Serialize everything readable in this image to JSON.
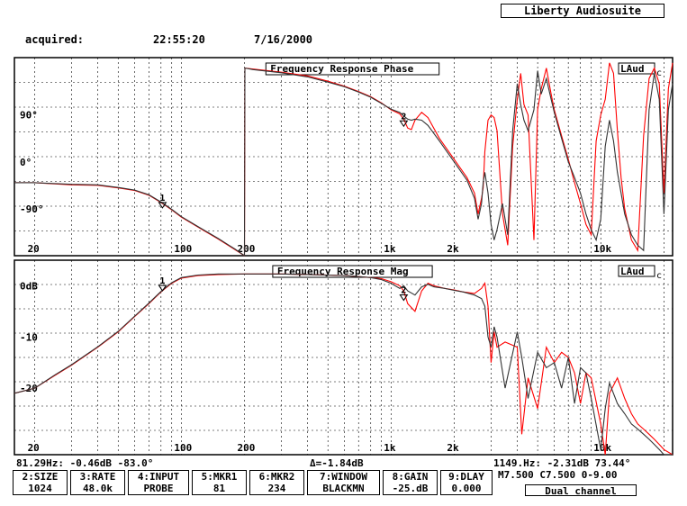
{
  "app_title": "Liberty Audiosuite",
  "acquisition": {
    "label": "acquired:",
    "time": "22:55:20",
    "date": "7/16/2000"
  },
  "colors": {
    "series1": "#ff0000",
    "series2": "#333333",
    "grid": "#000000",
    "frame": "#000000"
  },
  "chart_data": [
    {
      "type": "line",
      "title": "Frequency Response Phase",
      "badge": "LAud",
      "x_scale": "log",
      "xlim": [
        16,
        22000
      ],
      "x_ticks": [
        20,
        100,
        200,
        "1k",
        "2k",
        "10k"
      ],
      "x_tick_values": [
        20,
        100,
        200,
        1000,
        2000,
        10000
      ],
      "ylim": [
        -180,
        200
      ],
      "y_ticks": [
        "90°",
        "0°",
        "-90°"
      ],
      "y_tick_values": [
        90,
        0,
        -90
      ],
      "markers": [
        {
          "label": "1",
          "x": 81.29,
          "y": -83.0
        },
        {
          "label": "2",
          "x": 1149,
          "y": 73.44
        }
      ],
      "series": [
        {
          "x": [
            16,
            20,
            30,
            40,
            50,
            60,
            70,
            80,
            90,
            100,
            120,
            150,
            180,
            200,
            201,
            220,
            300,
            400,
            500,
            600,
            700,
            800,
            900,
            1000,
            1100,
            1150,
            1200,
            1250,
            1300,
            1400,
            1500,
            1700,
            2000,
            2300,
            2500,
            2600,
            2700,
            2750,
            2800,
            2900,
            3000,
            3100,
            3200,
            3400,
            3600,
            3800,
            4000,
            4150,
            4300,
            4500,
            4800,
            5000,
            5200,
            5500,
            5800,
            6000,
            6500,
            7000,
            7500,
            8000,
            8500,
            9000,
            9500,
            10000,
            10500,
            11000,
            11500,
            12000,
            12500,
            13000,
            14000,
            15000,
            16000,
            17000,
            18000,
            19000,
            20000,
            21000,
            22000
          ],
          "y": [
            -40,
            -40,
            -44,
            -45,
            -50,
            -55,
            -64,
            -78,
            -92,
            -106,
            -125,
            -148,
            -168,
            -180,
            180,
            178,
            172,
            165,
            155,
            145,
            135,
            125,
            113,
            100,
            92,
            82,
            65,
            62,
            80,
            95,
            85,
            45,
            5,
            -30,
            -60,
            -100,
            -70,
            -50,
            20,
            80,
            90,
            85,
            60,
            -100,
            -160,
            30,
            120,
            170,
            110,
            90,
            -150,
            100,
            140,
            180,
            130,
            100,
            50,
            5,
            -40,
            -80,
            -120,
            -140,
            40,
            90,
            120,
            190,
            170,
            60,
            -30,
            -90,
            -150,
            -170,
            50,
            160,
            180,
            150,
            -60,
            140,
            190
          ]
        },
        {
          "x": [
            16,
            20,
            30,
            40,
            50,
            60,
            70,
            80,
            90,
            100,
            120,
            150,
            180,
            200,
            201,
            220,
            300,
            400,
            500,
            600,
            700,
            800,
            900,
            1000,
            1100,
            1150,
            1200,
            1250,
            1300,
            1400,
            1500,
            1700,
            2000,
            2300,
            2500,
            2600,
            2700,
            2750,
            2800,
            2900,
            3000,
            3100,
            3200,
            3400,
            3600,
            3800,
            4000,
            4150,
            4300,
            4500,
            4800,
            5000,
            5200,
            5500,
            5800,
            6000,
            6500,
            7000,
            7500,
            8000,
            8500,
            9000,
            9500,
            10000,
            10500,
            11000,
            11500,
            12000,
            12500,
            13000,
            14000,
            15000,
            16000,
            17000,
            18000,
            19000,
            20000,
            21000,
            22000
          ],
          "y": [
            -40,
            -40,
            -43,
            -44,
            -49,
            -54,
            -63,
            -77,
            -91,
            -105,
            -124,
            -147,
            -167,
            -180,
            180,
            177,
            171,
            163,
            153,
            144,
            134,
            124,
            112,
            101,
            95,
            88,
            82,
            80,
            82,
            80,
            70,
            40,
            0,
            -35,
            -70,
            -110,
            -80,
            -40,
            -20,
            -60,
            -120,
            -150,
            -130,
            -80,
            -140,
            60,
            150,
            110,
            80,
            60,
            100,
            175,
            130,
            160,
            120,
            95,
            45,
            0,
            -30,
            -60,
            -100,
            -130,
            -150,
            -110,
            30,
            80,
            40,
            -20,
            -60,
            -100,
            -140,
            -160,
            -170,
            100,
            170,
            120,
            -100,
            100,
            150
          ]
        }
      ]
    },
    {
      "type": "line",
      "title": "Frequency Response Mag",
      "badge": "LAud",
      "x_scale": "log",
      "xlim": [
        16,
        22000
      ],
      "x_ticks": [
        20,
        100,
        200,
        "1k",
        "2k",
        "10k"
      ],
      "x_tick_values": [
        20,
        100,
        200,
        1000,
        2000,
        10000
      ],
      "ylim": [
        -33,
        5
      ],
      "y_ticks": [
        "0dB",
        "-10",
        "-20"
      ],
      "y_tick_values": [
        0,
        -10,
        -20
      ],
      "markers": [
        {
          "label": "1",
          "x": 81.29,
          "y": -0.46
        },
        {
          "label": "2",
          "x": 1149,
          "y": -2.31
        }
      ],
      "series": [
        {
          "x": [
            16,
            20,
            25,
            30,
            40,
            50,
            60,
            70,
            80,
            90,
            100,
            120,
            150,
            200,
            300,
            400,
            500,
            600,
            700,
            800,
            900,
            1000,
            1100,
            1150,
            1200,
            1300,
            1400,
            1500,
            1600,
            1800,
            2000,
            2200,
            2500,
            2700,
            2800,
            2900,
            3000,
            3100,
            3200,
            3500,
            4000,
            4200,
            4500,
            5000,
            5500,
            6000,
            6500,
            7000,
            7500,
            8000,
            8500,
            9000,
            10000,
            10500,
            11000,
            12000,
            13000,
            14000,
            15000,
            16000,
            17000,
            18000,
            19000,
            20000,
            22000
          ],
          "y": [
            -21,
            -20,
            -17.5,
            -15.5,
            -12,
            -9,
            -6,
            -3.5,
            -1.2,
            0.5,
            1.5,
            2,
            2.2,
            2.3,
            2.3,
            2.2,
            2.1,
            2,
            1.8,
            1.6,
            1.4,
            0.8,
            0,
            -1,
            -3.5,
            -5,
            -1,
            0.5,
            0,
            -0.5,
            -0.8,
            -1.2,
            -1.5,
            -0.5,
            0.5,
            -4,
            -15,
            -9,
            -12,
            -11,
            -12,
            -29,
            -18,
            -24,
            -12,
            -15,
            -13,
            -14,
            -17,
            -23,
            -17,
            -18,
            -27,
            -33,
            -21,
            -18,
            -22,
            -25,
            -27,
            -28,
            -29,
            -30,
            -31,
            -32,
            -33
          ]
        },
        {
          "x": [
            16,
            20,
            25,
            30,
            40,
            50,
            60,
            70,
            80,
            90,
            100,
            120,
            150,
            200,
            300,
            400,
            500,
            600,
            700,
            800,
            900,
            1000,
            1100,
            1150,
            1200,
            1300,
            1400,
            1500,
            1600,
            1800,
            2000,
            2200,
            2500,
            2700,
            2800,
            2900,
            3000,
            3100,
            3200,
            3500,
            4000,
            4200,
            4500,
            5000,
            5500,
            6000,
            6500,
            7000,
            7500,
            8000,
            8500,
            9000,
            10000,
            10500,
            11000,
            12000,
            13000,
            14000,
            15000,
            16000,
            17000,
            18000,
            19000,
            20000,
            22000
          ],
          "y": [
            -21,
            -20,
            -17.4,
            -15.4,
            -11.9,
            -8.9,
            -5.9,
            -3.4,
            -1.1,
            0.6,
            1.6,
            2.1,
            2.3,
            2.3,
            2.3,
            2.2,
            2.1,
            2,
            1.8,
            1.6,
            1.2,
            0.5,
            -0.5,
            0,
            -1,
            -1.8,
            -0.2,
            0.3,
            -0.2,
            -0.5,
            -0.9,
            -1.2,
            -1.8,
            -2.5,
            -4,
            -10,
            -12,
            -8,
            -10,
            -20,
            -9,
            -14,
            -22,
            -13,
            -16,
            -15,
            -20,
            -14,
            -23,
            -16,
            -17,
            -22,
            -32,
            -24,
            -19,
            -23,
            -25,
            -27,
            -28,
            -29,
            -30,
            -31,
            -32,
            -33,
            -33
          ]
        }
      ]
    }
  ],
  "readout": {
    "marker1": "81.29Hz: -0.46dB  -83.0°",
    "delta": "Δ=-1.84dB",
    "marker2": "1149.Hz: -2.31dB 73.44°"
  },
  "function_keys": [
    {
      "key": "2:SIZE",
      "value": "1024"
    },
    {
      "key": "3:RATE",
      "value": "48.0k"
    },
    {
      "key": "4:INPUT",
      "value": "PROBE"
    },
    {
      "key": "5:MKR1",
      "value": "81"
    },
    {
      "key": "6:MKR2",
      "value": "234"
    },
    {
      "key": "7:WINDOW",
      "value": "BLACKMN"
    },
    {
      "key": "8:GAIN",
      "value": "-25.dB"
    },
    {
      "key": "9:DLAY",
      "value": "0.000"
    }
  ],
  "mode_readout": "M7.500 C7.500 0-9.00",
  "channel_mode": "Dual channel"
}
